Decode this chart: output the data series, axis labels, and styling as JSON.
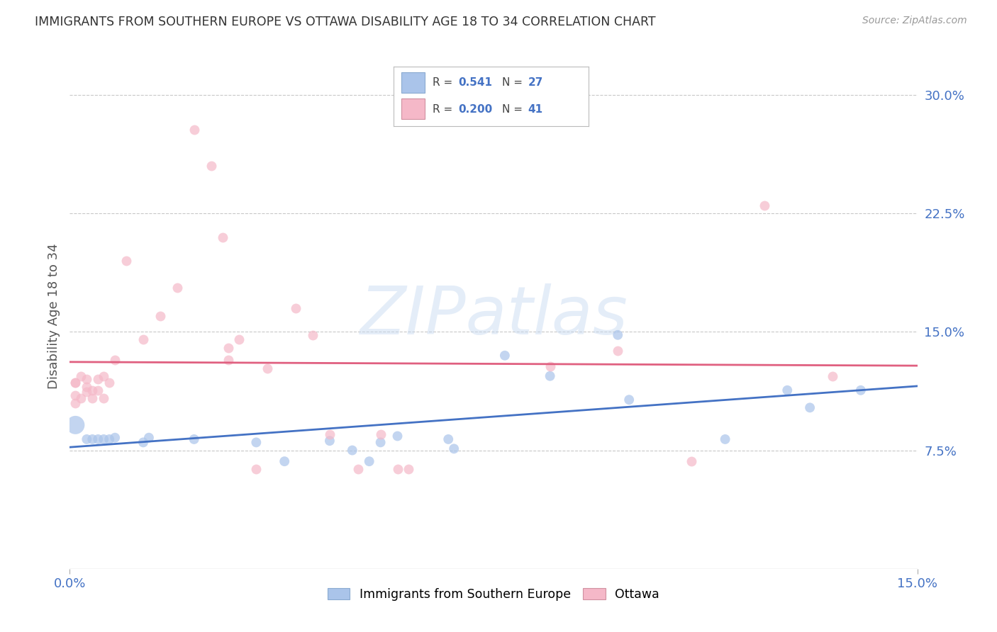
{
  "title": "IMMIGRANTS FROM SOUTHERN EUROPE VS OTTAWA DISABILITY AGE 18 TO 34 CORRELATION CHART",
  "source": "Source: ZipAtlas.com",
  "ylabel": "Disability Age 18 to 34",
  "xlim": [
    0.0,
    0.15
  ],
  "ylim": [
    0.0,
    0.32
  ],
  "blue_R": "0.541",
  "blue_N": "27",
  "pink_R": "0.200",
  "pink_N": "41",
  "blue_color": "#aac4ea",
  "pink_color": "#f5b8c8",
  "blue_line_color": "#4472c4",
  "pink_line_color": "#e06080",
  "blue_scatter": [
    [
      0.001,
      0.091
    ],
    [
      0.003,
      0.082
    ],
    [
      0.004,
      0.082
    ],
    [
      0.005,
      0.082
    ],
    [
      0.006,
      0.082
    ],
    [
      0.007,
      0.082
    ],
    [
      0.008,
      0.083
    ],
    [
      0.013,
      0.08
    ],
    [
      0.014,
      0.083
    ],
    [
      0.022,
      0.082
    ],
    [
      0.033,
      0.08
    ],
    [
      0.038,
      0.068
    ],
    [
      0.046,
      0.081
    ],
    [
      0.05,
      0.075
    ],
    [
      0.053,
      0.068
    ],
    [
      0.055,
      0.08
    ],
    [
      0.058,
      0.084
    ],
    [
      0.067,
      0.082
    ],
    [
      0.068,
      0.076
    ],
    [
      0.077,
      0.135
    ],
    [
      0.085,
      0.122
    ],
    [
      0.097,
      0.148
    ],
    [
      0.099,
      0.107
    ],
    [
      0.116,
      0.082
    ],
    [
      0.127,
      0.113
    ],
    [
      0.131,
      0.102
    ],
    [
      0.14,
      0.113
    ]
  ],
  "pink_scatter": [
    [
      0.001,
      0.118
    ],
    [
      0.001,
      0.11
    ],
    [
      0.001,
      0.105
    ],
    [
      0.001,
      0.118
    ],
    [
      0.002,
      0.122
    ],
    [
      0.002,
      0.108
    ],
    [
      0.003,
      0.112
    ],
    [
      0.003,
      0.12
    ],
    [
      0.003,
      0.115
    ],
    [
      0.004,
      0.113
    ],
    [
      0.004,
      0.108
    ],
    [
      0.005,
      0.12
    ],
    [
      0.005,
      0.113
    ],
    [
      0.006,
      0.122
    ],
    [
      0.006,
      0.108
    ],
    [
      0.007,
      0.118
    ],
    [
      0.008,
      0.132
    ],
    [
      0.01,
      0.195
    ],
    [
      0.013,
      0.145
    ],
    [
      0.016,
      0.16
    ],
    [
      0.019,
      0.178
    ],
    [
      0.022,
      0.278
    ],
    [
      0.025,
      0.255
    ],
    [
      0.027,
      0.21
    ],
    [
      0.028,
      0.132
    ],
    [
      0.028,
      0.14
    ],
    [
      0.03,
      0.145
    ],
    [
      0.033,
      0.063
    ],
    [
      0.035,
      0.127
    ],
    [
      0.04,
      0.165
    ],
    [
      0.043,
      0.148
    ],
    [
      0.046,
      0.085
    ],
    [
      0.051,
      0.063
    ],
    [
      0.055,
      0.085
    ],
    [
      0.058,
      0.063
    ],
    [
      0.06,
      0.063
    ],
    [
      0.085,
      0.128
    ],
    [
      0.097,
      0.138
    ],
    [
      0.11,
      0.068
    ],
    [
      0.123,
      0.23
    ],
    [
      0.135,
      0.122
    ]
  ],
  "blue_large_size": 350,
  "scatter_size": 100,
  "watermark_text": "ZIPatlas",
  "background_color": "#ffffff",
  "grid_color": "#c8c8c8",
  "title_color": "#333333",
  "axis_label_color": "#4472c4",
  "ylabel_color": "#555555",
  "legend_label_blue": "Immigrants from Southern Europe",
  "legend_label_pink": "Ottawa",
  "yticks": [
    0.075,
    0.15,
    0.225,
    0.3
  ],
  "ytick_labels": [
    "7.5%",
    "15.0%",
    "22.5%",
    "30.0%"
  ],
  "xticks": [
    0.0,
    0.15
  ],
  "xtick_labels": [
    "0.0%",
    "15.0%"
  ]
}
